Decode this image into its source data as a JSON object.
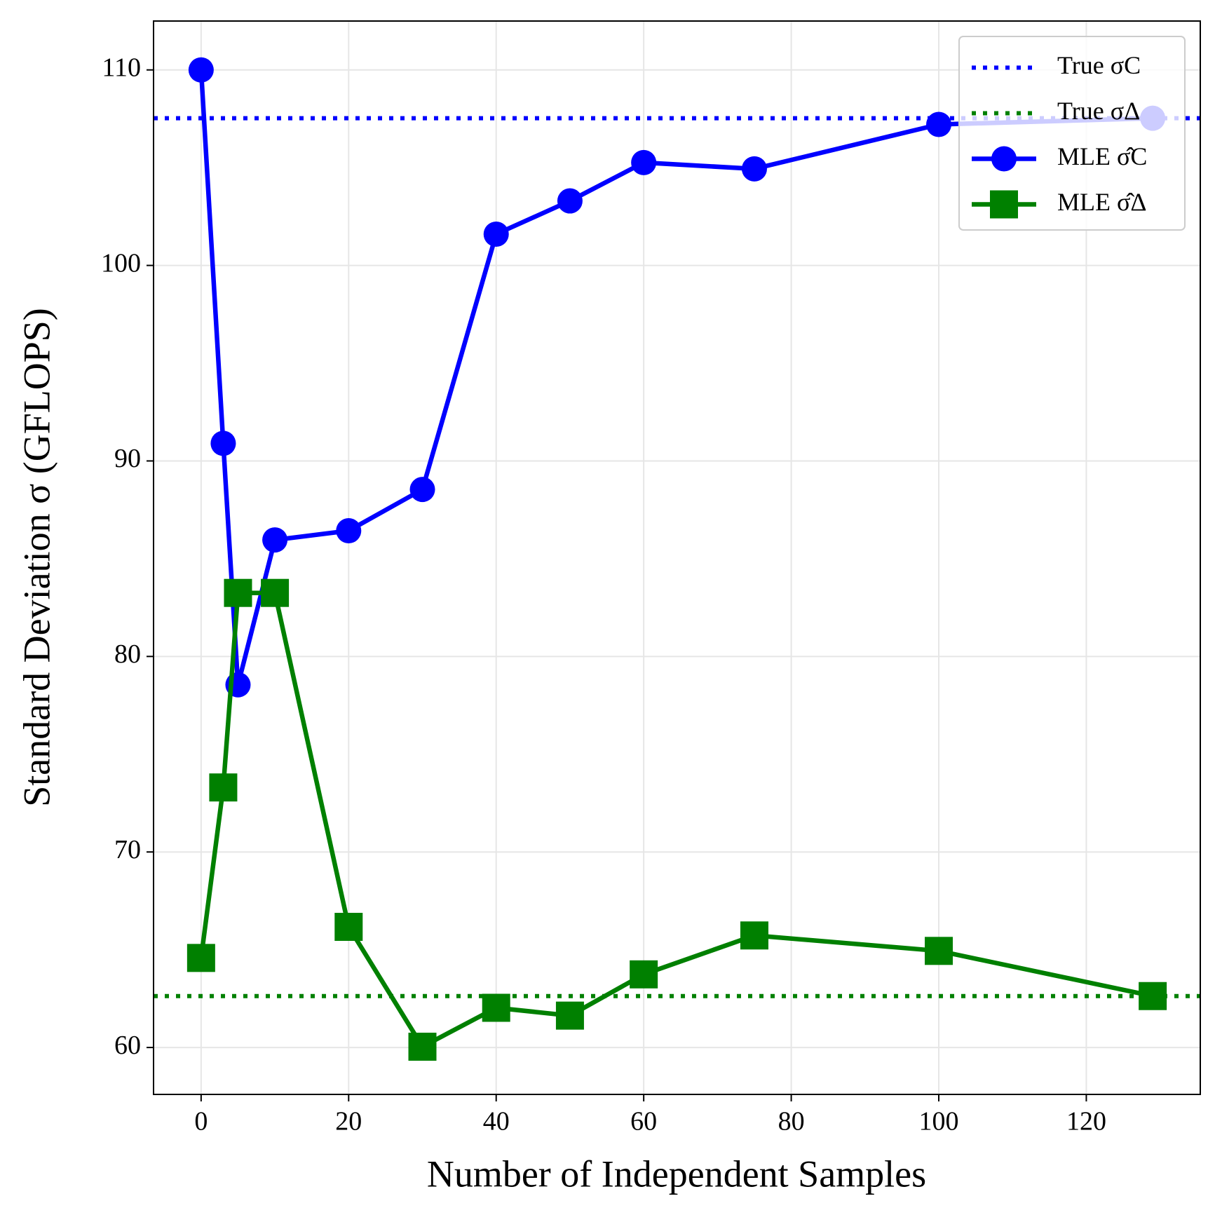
{
  "chart_data": {
    "type": "line",
    "xlabel": "Number of Independent Samples",
    "ylabel": "Standard Deviation σ (GFLOPS)",
    "x": [
      0,
      3,
      5,
      10,
      20,
      30,
      40,
      50,
      60,
      75,
      100,
      129
    ],
    "hlines": [
      {
        "name": "True σC",
        "color": "#0000ff",
        "value": 107.53
      },
      {
        "name": "True σΔ",
        "color": "#008000",
        "value": 62.63
      }
    ],
    "series": [
      {
        "name": "MLE σ̂C",
        "color": "#0000ff",
        "marker": "circle",
        "values": [
          110.0,
          90.9,
          78.55,
          85.96,
          86.43,
          88.54,
          101.6,
          103.3,
          105.26,
          104.94,
          107.21,
          107.53
        ]
      },
      {
        "name": "MLE σ̂Δ",
        "color": "#008000",
        "marker": "square",
        "values": [
          64.58,
          73.3,
          83.25,
          83.25,
          66.17,
          60.04,
          62.03,
          61.63,
          63.74,
          65.73,
          64.94,
          62.63
        ]
      }
    ],
    "xlim": [
      -6.45,
      135.45
    ],
    "xticks": [
      0,
      20,
      40,
      60,
      80,
      100,
      120
    ],
    "ylim": [
      57.6,
      112.5
    ],
    "yticks": [
      60,
      70,
      80,
      90,
      100,
      110
    ],
    "grid": true,
    "legend": "upper right"
  }
}
